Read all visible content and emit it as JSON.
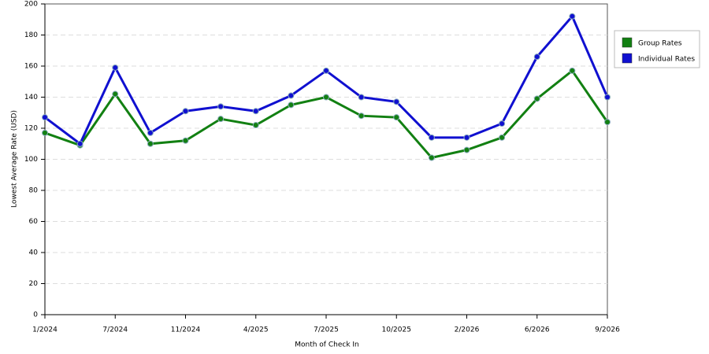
{
  "chart_data": {
    "type": "line",
    "x_label": "Month of Check In",
    "y_label": "Lowest Average Rate (USD)",
    "categories": [
      "1/2024",
      null,
      "7/2024",
      null,
      "11/2024",
      null,
      "4/2025",
      null,
      "7/2025",
      null,
      "10/2025",
      null,
      "2/2026",
      null,
      "6/2026",
      null,
      "9/2026"
    ],
    "series": [
      {
        "name": "Group Rates",
        "color": "#128012",
        "values": [
          117,
          109,
          142,
          110,
          112,
          126,
          122,
          135,
          140,
          128,
          127,
          101,
          106,
          114,
          139,
          157,
          124
        ]
      },
      {
        "name": "Individual Rates",
        "color": "#1010d0",
        "values": [
          127,
          110,
          159,
          117,
          131,
          134,
          131,
          141,
          157,
          140,
          137,
          114,
          114,
          123,
          166,
          192,
          140
        ]
      }
    ],
    "ylim": [
      0,
      200
    ],
    "yticks": [
      0,
      20,
      40,
      60,
      80,
      100,
      120,
      140,
      160,
      180,
      200
    ],
    "grid": true,
    "legend": "right"
  }
}
